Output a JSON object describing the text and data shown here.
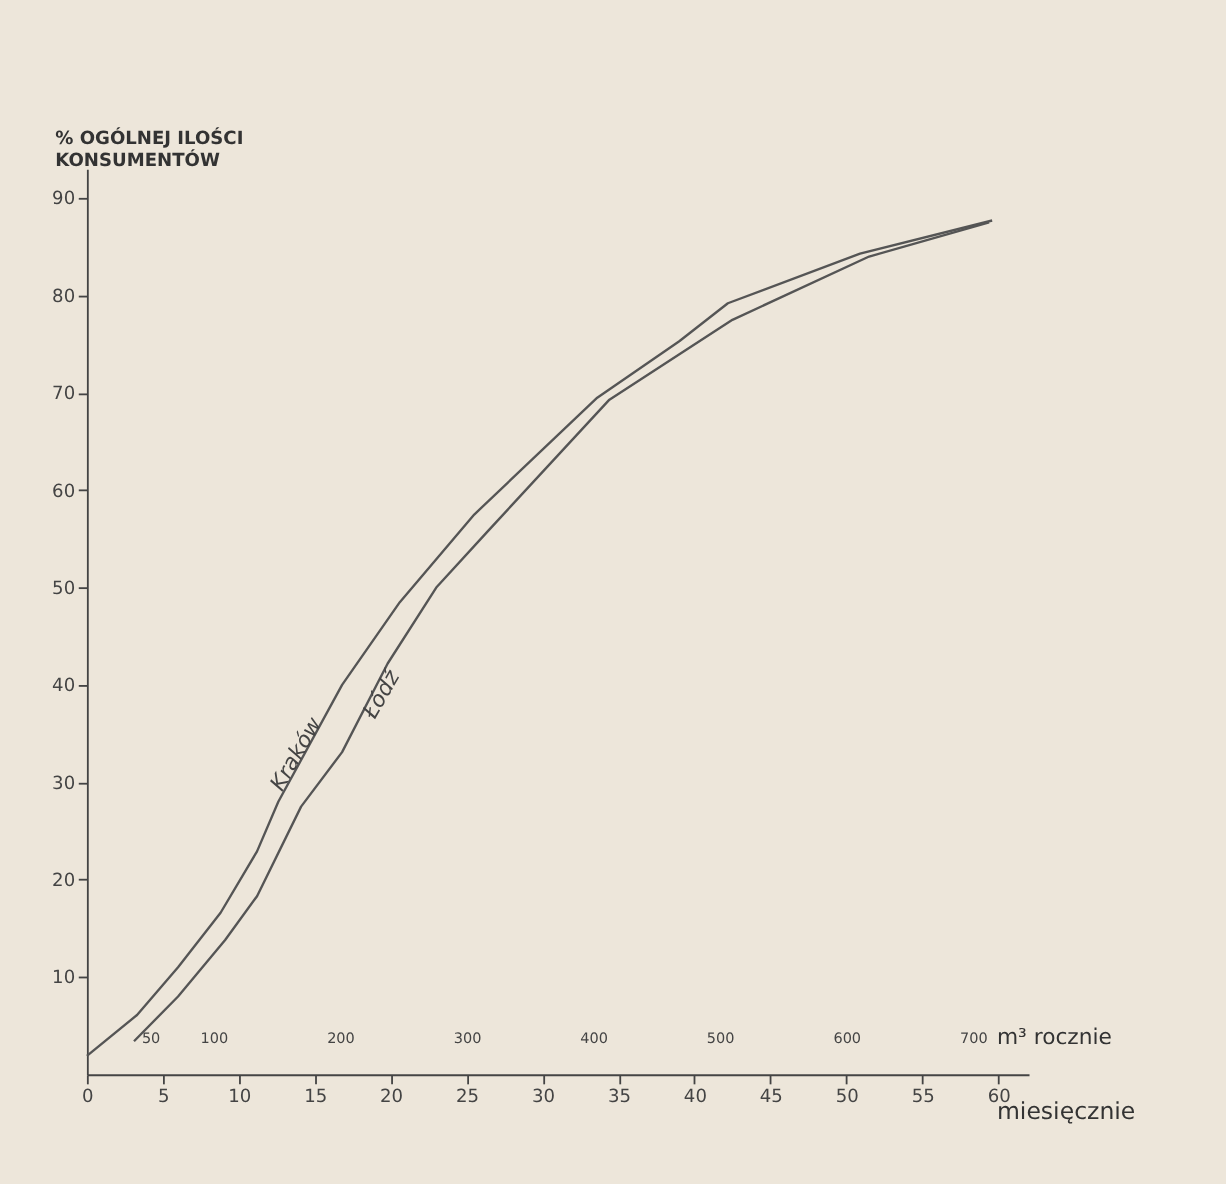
{
  "chart_data": {
    "type": "line",
    "ylabel": "% OGÓLNEJ ILOŚCI KONSUMENTÓW",
    "xlabel": "miesięcznie",
    "x2label": "m³ rocznie",
    "series": [
      {
        "name": "Kraków",
        "color": "#555555",
        "x": [
          0,
          3.3,
          6,
          8.8,
          11.2,
          12.6,
          16.8,
          20.6,
          25.5,
          33.6,
          39,
          42.2,
          50.9,
          59.6
        ],
        "values": [
          1.9,
          6.1,
          11,
          16.6,
          22.9,
          28,
          40,
          48.5,
          57.5,
          69.5,
          75.3,
          79.2,
          84.3,
          87.7
        ]
      },
      {
        "name": "Łódź",
        "color": "#555555",
        "x": [
          3.1,
          6,
          9.1,
          11.2,
          14.1,
          16.8,
          19.8,
          23,
          26.4,
          34.4,
          42.5,
          51.5,
          59.4
        ],
        "values": [
          3.4,
          8,
          13.8,
          18.3,
          27.5,
          33.1,
          42.2,
          50,
          55.8,
          69.3,
          77.5,
          84,
          87.5
        ]
      }
    ],
    "xlim": [
      0,
      62
    ],
    "xticks": [
      0,
      5,
      10,
      15,
      20,
      25,
      30,
      35,
      40,
      45,
      50,
      55,
      60
    ],
    "x2lim": [
      0,
      744
    ],
    "x2ticks": [
      50,
      100,
      200,
      300,
      400,
      500,
      600,
      700
    ],
    "ylim": [
      0,
      93
    ],
    "yticks": [
      10,
      20,
      30,
      40,
      50,
      60,
      70,
      80,
      90
    ],
    "grid": false,
    "legend": false,
    "marker": "none",
    "line_style": "solid"
  }
}
